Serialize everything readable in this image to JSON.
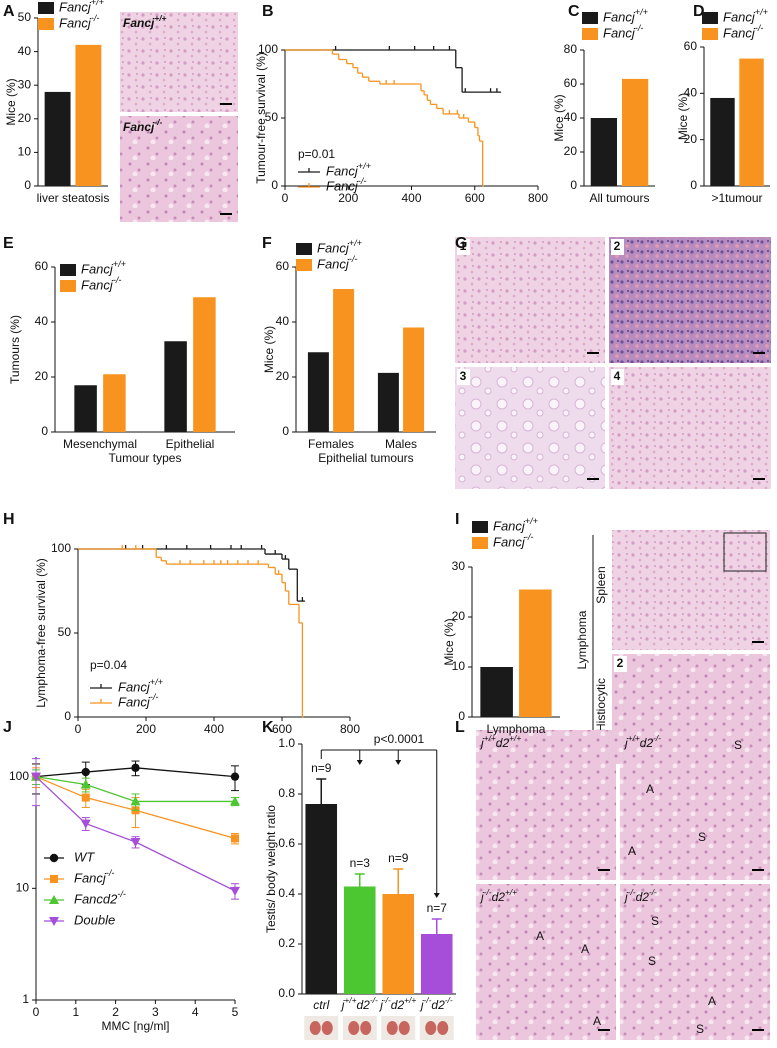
{
  "panel_letters": [
    "A",
    "B",
    "C",
    "D",
    "E",
    "F",
    "G",
    "H",
    "I",
    "J",
    "K",
    "L"
  ],
  "images": {
    "A": [
      "Fancj+/+",
      "Fancj-/-"
    ],
    "G": [
      "1",
      "2",
      "3",
      "4"
    ],
    "I": [
      "Lymphoma",
      "Spleen",
      "Histiocytic",
      "2"
    ],
    "L_titles": [
      "j+/+d2+/+",
      "j+/+d2-/-",
      "j-/-d2+/+",
      "j-/-d2-/-"
    ],
    "L_marks": [
      [],
      [
        "A",
        "A",
        "S",
        "S"
      ],
      [
        "A",
        "A",
        "A"
      ],
      [
        "S",
        "S",
        "A",
        "S"
      ]
    ]
  },
  "chart_data": [
    {
      "type": "bar",
      "ylabel": "Mice (%)",
      "categories": [
        "liver steatosis"
      ],
      "legend": "top",
      "series": [
        {
          "name": "Fancj+/+",
          "color": "#1a1a1a",
          "values": [
            28
          ]
        },
        {
          "name": "Fancj-/-",
          "color": "#f7931e",
          "values": [
            42
          ]
        }
      ],
      "ylim": [
        0,
        50
      ],
      "yticks": [
        0,
        10,
        20,
        30,
        40,
        50
      ]
    },
    {
      "type": "survival",
      "ylabel": "Tumour-free survival (%)",
      "annotation": "p=0.01",
      "legend": "lower left",
      "xlim": [
        0,
        800
      ],
      "xticks": [
        0,
        200,
        400,
        600,
        800
      ],
      "ylim": [
        0,
        100
      ],
      "yticks": [
        0,
        50,
        100
      ],
      "series": [
        {
          "name": "Fancj+/+",
          "color": "#1a1a1a",
          "x": [
            0,
            540,
            560,
            680
          ],
          "values": [
            100,
            87,
            69,
            69
          ],
          "censored_x": [
            160,
            330,
            410,
            470,
            520,
            570,
            650,
            670
          ]
        },
        {
          "name": "Fancj-/-",
          "color": "#f7931e",
          "x": [
            0,
            150,
            170,
            195,
            215,
            230,
            245,
            265,
            300,
            430,
            440,
            450,
            460,
            480,
            500,
            550,
            580,
            600,
            610,
            615,
            625
          ],
          "values": [
            100,
            97,
            93,
            90,
            87,
            83,
            80,
            77,
            75,
            70,
            67,
            63,
            60,
            57,
            53,
            50,
            47,
            43,
            37,
            33,
            0
          ],
          "censored_x": [
            320,
            345,
            520,
            545,
            565,
            600
          ]
        }
      ]
    },
    {
      "type": "bar",
      "ylabel": "Mice (%)",
      "categories": [
        "All tumours"
      ],
      "legend": "top",
      "series": [
        {
          "name": "Fancj+/+",
          "color": "#1a1a1a",
          "values": [
            40
          ]
        },
        {
          "name": "Fancj-/-",
          "color": "#f7931e",
          "values": [
            63
          ]
        }
      ],
      "ylim": [
        0,
        80
      ],
      "yticks": [
        0,
        20,
        40,
        60,
        80
      ]
    },
    {
      "type": "bar",
      "ylabel": "Mice (%)",
      "categories": [
        ">1tumour"
      ],
      "legend": "top",
      "series": [
        {
          "name": "Fancj+/+",
          "color": "#1a1a1a",
          "values": [
            38
          ]
        },
        {
          "name": "Fancj-/-",
          "color": "#f7931e",
          "values": [
            55
          ]
        }
      ],
      "ylim": [
        0,
        60
      ],
      "yticks": [
        0,
        20,
        40,
        60
      ]
    },
    {
      "type": "bar",
      "ylabel": "Tumours (%)",
      "xlabel": "Tumour types",
      "categories": [
        "Mesenchymal",
        "Epithelial"
      ],
      "legend": "top",
      "series": [
        {
          "name": "Fancj+/+",
          "color": "#1a1a1a",
          "values": [
            17,
            33
          ]
        },
        {
          "name": "Fancj-/-",
          "color": "#f7931e",
          "values": [
            21,
            49
          ]
        }
      ],
      "ylim": [
        0,
        60
      ],
      "yticks": [
        0,
        20,
        40,
        60
      ]
    },
    {
      "type": "bar",
      "ylabel": "Mice (%)",
      "xlabel": "Epithelial tumours",
      "categories": [
        "Females",
        "Males"
      ],
      "legend": "top",
      "series": [
        {
          "name": "Fancj+/+",
          "color": "#1a1a1a",
          "values": [
            29,
            21.5
          ]
        },
        {
          "name": "Fancj-/-",
          "color": "#f7931e",
          "values": [
            52,
            38
          ]
        }
      ],
      "ylim": [
        0,
        60
      ],
      "yticks": [
        0,
        20,
        40,
        60
      ]
    },
    {
      "type": "survival",
      "ylabel": "Lymphoma-free survival (%)",
      "annotation": "p=0.04",
      "legend": "lower left",
      "xlim": [
        0,
        800
      ],
      "xticks": [
        0,
        200,
        400,
        600,
        800
      ],
      "ylim": [
        0,
        100
      ],
      "yticks": [
        0,
        50,
        100
      ],
      "series": [
        {
          "name": "Fancj+/+",
          "color": "#1a1a1a",
          "x": [
            0,
            550,
            600,
            620,
            645,
            665
          ],
          "values": [
            100,
            97,
            94,
            88,
            69,
            69
          ],
          "censored_x": [
            140,
            190,
            260,
            320,
            390,
            450,
            480,
            540,
            580,
            610,
            660
          ]
        },
        {
          "name": "Fancj-/-",
          "color": "#f7931e",
          "x": [
            0,
            230,
            245,
            260,
            560,
            580,
            600,
            610,
            620,
            650,
            660
          ],
          "values": [
            100,
            95,
            93,
            91,
            89,
            85,
            80,
            75,
            67,
            56,
            0
          ],
          "censored_x": [
            130,
            170,
            300,
            330,
            370,
            400,
            420,
            440,
            470,
            500,
            530,
            590
          ]
        }
      ]
    },
    {
      "type": "bar",
      "ylabel": "Mice (%)",
      "categories": [
        "Lymphoma"
      ],
      "legend": "top",
      "series": [
        {
          "name": "Fancj+/+",
          "color": "#1a1a1a",
          "values": [
            10
          ]
        },
        {
          "name": "Fancj-/-",
          "color": "#f7931e",
          "values": [
            25.5
          ]
        }
      ],
      "ylim": [
        0,
        30
      ],
      "yticks": [
        0,
        10,
        20,
        30
      ]
    },
    {
      "type": "line",
      "xlabel": "MMC [ng/ml]",
      "log_y": true,
      "legend": "lower left",
      "x": [
        0,
        1.25,
        2.5,
        5
      ],
      "xlim": [
        0,
        5
      ],
      "xticks": [
        0,
        1,
        2,
        3,
        4,
        5
      ],
      "ylim": [
        1,
        150
      ],
      "yticks": [
        1,
        10,
        100
      ],
      "series": [
        {
          "name": "WT",
          "color": "#111111",
          "marker": "circle",
          "values": [
            100,
            110,
            120,
            100
          ],
          "errors": [
            30,
            25,
            18,
            25
          ]
        },
        {
          "name": "Fancj-/-",
          "color": "#f7931e",
          "marker": "square",
          "values": [
            100,
            65,
            50,
            28
          ],
          "errors": [
            20,
            12,
            15,
            3
          ]
        },
        {
          "name": "Fancd2-/-",
          "color": "#4cc631",
          "marker": "triangle-up",
          "values": [
            100,
            85,
            60,
            60
          ],
          "errors": [
            15,
            12,
            10,
            5
          ]
        },
        {
          "name": "Double",
          "color": "#a64dd9",
          "marker": "triangle-down",
          "values": [
            100,
            38,
            26,
            9.5
          ],
          "errors": [
            45,
            5,
            3,
            1.5
          ]
        }
      ]
    },
    {
      "type": "bar_error",
      "ylabel": "Testis/ body weight ratio",
      "categories": [
        "ctrl",
        "j+/+d2-/-",
        "j-/-d2+/+",
        "j-/-d2-/-"
      ],
      "values": [
        0.76,
        0.43,
        0.4,
        0.24
      ],
      "errors": [
        0.1,
        0.05,
        0.1,
        0.06
      ],
      "colors": [
        "#1a1a1a",
        "#4cc631",
        "#f7931e",
        "#a64dd9"
      ],
      "annotations": [
        "n=9",
        "n=3",
        "n=9",
        "n=7"
      ],
      "p_label": "p<0.0001",
      "ylim": [
        0,
        1
      ],
      "yticks": [
        {
          "value": 0,
          "label": "0.0"
        },
        0.2,
        0.4,
        0.6,
        0.8,
        {
          "value": 1,
          "label": "1.0"
        }
      ]
    }
  ]
}
